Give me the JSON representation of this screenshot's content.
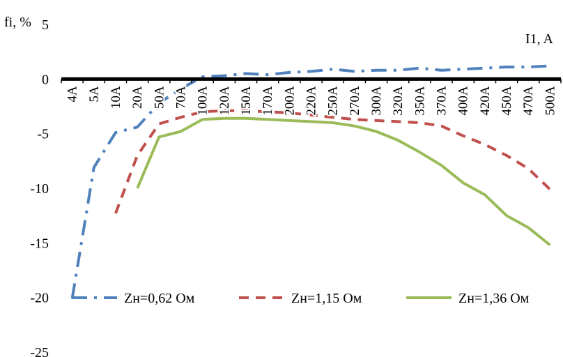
{
  "chart_data": {
    "type": "line",
    "ylabel": "fi, %",
    "xlabel": "I1, A",
    "ylim": [
      -25,
      5
    ],
    "yticks": [
      5,
      0,
      -5,
      -10,
      -15,
      -20,
      -25
    ],
    "categories": [
      "4A",
      "5A",
      "10A",
      "20A",
      "50A",
      "70A",
      "100A",
      "120A",
      "150A",
      "170A",
      "200A",
      "220A",
      "250A",
      "270A",
      "300A",
      "320A",
      "350A",
      "370A",
      "400A",
      "420A",
      "450A",
      "470A",
      "500A"
    ],
    "grid": false,
    "legend_position": "bottom",
    "series": [
      {
        "name": "Zн=0,62 Ом",
        "color": "#4f81bd",
        "style": "dashdot",
        "values": [
          -20.1,
          -8.1,
          -4.9,
          -4.4,
          -2.2,
          -0.9,
          0.2,
          0.3,
          0.5,
          0.4,
          0.6,
          0.7,
          0.9,
          0.7,
          0.8,
          0.8,
          1.0,
          0.8,
          0.9,
          1.0,
          1.1,
          1.1,
          1.2
        ]
      },
      {
        "name": "Zн=1,15 Ом",
        "color": "#c0504d",
        "style": "dashed",
        "values": [
          null,
          null,
          -12.3,
          -7.0,
          -4.1,
          -3.5,
          -3.0,
          -2.9,
          -2.9,
          -3.0,
          -3.1,
          -3.3,
          -3.5,
          -3.7,
          -3.8,
          -3.9,
          -4.0,
          -4.3,
          -5.2,
          -6.0,
          -7.0,
          -8.2,
          -10.1
        ]
      },
      {
        "name": "Zн=1,36 Ом",
        "color": "#9bbb59",
        "style": "solid",
        "values": [
          null,
          null,
          null,
          -10.0,
          -5.3,
          -4.8,
          -3.7,
          -3.6,
          -3.6,
          -3.7,
          -3.8,
          -3.9,
          -4.0,
          -4.3,
          -4.8,
          -5.6,
          -6.7,
          -7.9,
          -9.5,
          -10.6,
          -12.5,
          -13.6,
          -15.2
        ]
      }
    ]
  }
}
